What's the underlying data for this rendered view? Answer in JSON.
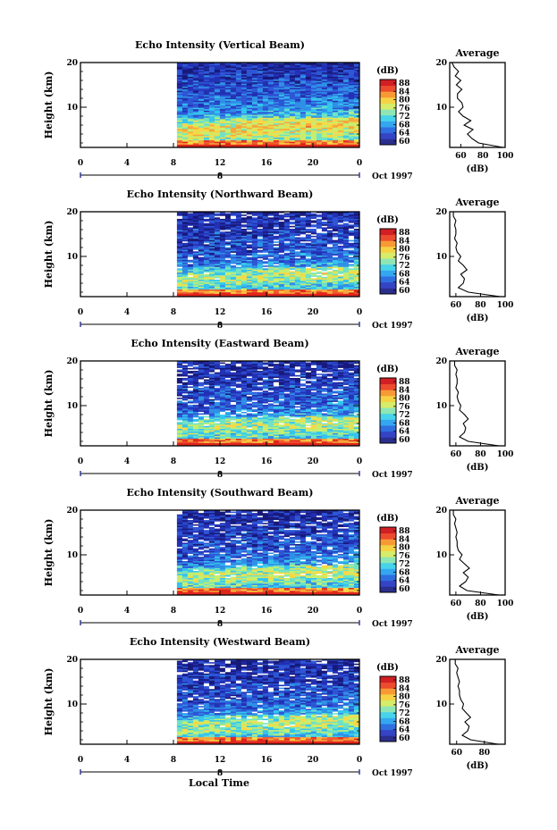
{
  "colors": {
    "scale": [
      "#2a2f8e",
      "#3444c4",
      "#2f6fe0",
      "#35a6f0",
      "#47d3ea",
      "#8fe6b5",
      "#d6ec6a",
      "#f6d243",
      "#f79a35",
      "#ec4b2e",
      "#d11f24"
    ],
    "curtain_ramp": [
      "#17197a",
      "#2230b4",
      "#2d55d6",
      "#2f8fe6",
      "#34c4ee",
      "#6fe2c4",
      "#c6ee6e",
      "#f7d845",
      "#f6a73a",
      "#ef5a2c",
      "#e0251d"
    ]
  },
  "footer": {
    "xlabel": "Local Time"
  },
  "chart_data": [
    {
      "type": "heatmap",
      "title": "Echo Intensity (Vertical Beam)",
      "ylabel": "Height (km)",
      "yticks": [
        "20",
        "10"
      ],
      "xticks": [
        "0",
        "4",
        "8",
        "12",
        "16",
        "20",
        "0"
      ],
      "date_tick": "8",
      "date_label": "Oct 1997",
      "ylim": [
        1,
        20
      ],
      "xlim": [
        0,
        24
      ],
      "data_start_hour": 8.3,
      "colorbar": {
        "unit": "(dB)",
        "ticks": [
          "88",
          "84",
          "80",
          "76",
          "72",
          "68",
          "64",
          "60"
        ],
        "range": [
          60,
          90
        ]
      },
      "average": {
        "title": "Average",
        "xlabel": "(dB)",
        "xticks": [
          "60",
          "80",
          "100"
        ],
        "xlim": [
          50,
          100
        ],
        "heights": [
          1,
          2,
          3,
          4,
          5,
          6,
          7,
          8,
          9,
          10,
          11,
          12,
          13,
          14,
          15,
          16,
          17,
          18,
          19,
          20
        ],
        "values": [
          98,
          76,
          70,
          66,
          71,
          63,
          69,
          62,
          58,
          62,
          61,
          57,
          57,
          61,
          56,
          60,
          55,
          58,
          54,
          52
        ]
      }
    },
    {
      "type": "heatmap",
      "title": "Echo Intensity (Northward Beam)",
      "ylabel": "Height (km)",
      "yticks": [
        "20",
        "10"
      ],
      "xticks": [
        "0",
        "4",
        "8",
        "12",
        "16",
        "20",
        "0"
      ],
      "date_tick": "8",
      "date_label": "Oct 1997",
      "ylim": [
        1,
        20
      ],
      "xlim": [
        0,
        24
      ],
      "data_start_hour": 8.3,
      "colorbar": {
        "unit": "(dB)",
        "ticks": [
          "88",
          "84",
          "80",
          "76",
          "72",
          "68",
          "64",
          "60"
        ],
        "range": [
          60,
          90
        ]
      },
      "average": {
        "title": "Average",
        "xlabel": "(dB)",
        "xticks": [
          "60",
          "80",
          "100"
        ],
        "xlim": [
          55,
          100
        ],
        "heights": [
          1,
          2,
          3,
          4,
          5,
          6,
          7,
          8,
          9,
          10,
          11,
          12,
          13,
          14,
          15,
          16,
          17,
          18,
          19,
          20
        ],
        "values": [
          96,
          70,
          62,
          66,
          67,
          64,
          69,
          66,
          62,
          64,
          61,
          60,
          61,
          59,
          60,
          60,
          59,
          60,
          58,
          58
        ]
      }
    },
    {
      "type": "heatmap",
      "title": "Echo Intensity (Eastward Beam)",
      "ylabel": "Height (km)",
      "yticks": [
        "20",
        "10"
      ],
      "xticks": [
        "0",
        "4",
        "8",
        "12",
        "16",
        "20",
        "0"
      ],
      "date_tick": "8",
      "date_label": "Oct 1997",
      "ylim": [
        1,
        20
      ],
      "xlim": [
        0,
        24
      ],
      "data_start_hour": 8.3,
      "colorbar": {
        "unit": "(dB)",
        "ticks": [
          "88",
          "84",
          "80",
          "76",
          "72",
          "68",
          "64",
          "60"
        ],
        "range": [
          60,
          90
        ]
      },
      "average": {
        "title": "Average",
        "xlabel": "(dB)",
        "xticks": [
          "60",
          "80",
          "100"
        ],
        "xlim": [
          55,
          100
        ],
        "heights": [
          1,
          2,
          3,
          4,
          5,
          6,
          7,
          8,
          9,
          10,
          11,
          12,
          13,
          14,
          15,
          16,
          17,
          18,
          19,
          20
        ],
        "values": [
          95,
          70,
          63,
          67,
          68,
          66,
          70,
          67,
          63,
          64,
          62,
          61,
          62,
          60,
          61,
          61,
          60,
          61,
          59,
          59
        ]
      }
    },
    {
      "type": "heatmap",
      "title": "Echo Intensity (Southward Beam)",
      "ylabel": "Height (km)",
      "yticks": [
        "20",
        "10"
      ],
      "xticks": [
        "0",
        "4",
        "8",
        "12",
        "16",
        "20",
        "0"
      ],
      "date_tick": "8",
      "date_label": "Oct 1997",
      "ylim": [
        1,
        20
      ],
      "xlim": [
        0,
        24
      ],
      "data_start_hour": 8.3,
      "colorbar": {
        "unit": "(dB)",
        "ticks": [
          "88",
          "84",
          "80",
          "76",
          "72",
          "68",
          "64",
          "60"
        ],
        "range": [
          60,
          90
        ]
      },
      "average": {
        "title": "Average",
        "xlabel": "(dB)",
        "xticks": [
          "60",
          "80",
          "100"
        ],
        "xlim": [
          55,
          100
        ],
        "heights": [
          1,
          2,
          3,
          4,
          5,
          6,
          7,
          8,
          9,
          10,
          11,
          12,
          13,
          14,
          15,
          16,
          17,
          18,
          19,
          20
        ],
        "values": [
          95,
          69,
          63,
          68,
          70,
          66,
          71,
          67,
          63,
          65,
          62,
          61,
          61,
          60,
          61,
          60,
          59,
          60,
          58,
          58
        ]
      }
    },
    {
      "type": "heatmap",
      "title": "Echo Intensity (Westward Beam)",
      "ylabel": "Height (km)",
      "yticks": [
        "20",
        "10"
      ],
      "xticks": [
        "0",
        "4",
        "8",
        "12",
        "16",
        "20",
        "0"
      ],
      "date_tick": "8",
      "date_label": "Oct 1997",
      "ylim": [
        1,
        20
      ],
      "xlim": [
        0,
        24
      ],
      "data_start_hour": 8.3,
      "colorbar": {
        "unit": "(dB)",
        "ticks": [
          "88",
          "84",
          "80",
          "76",
          "72",
          "68",
          "64",
          "60"
        ],
        "range": [
          60,
          90
        ]
      },
      "average": {
        "title": "Average",
        "xlabel": "(dB)",
        "xticks": [
          "60",
          "80"
        ],
        "xlim": [
          55,
          95
        ],
        "heights": [
          1,
          2,
          3,
          4,
          5,
          6,
          7,
          8,
          9,
          10,
          11,
          12,
          13,
          14,
          15,
          16,
          17,
          18,
          19,
          20
        ],
        "values": [
          90,
          70,
          64,
          68,
          69,
          66,
          70,
          67,
          64,
          65,
          63,
          62,
          62,
          61,
          62,
          61,
          60,
          61,
          59,
          59
        ]
      }
    }
  ]
}
